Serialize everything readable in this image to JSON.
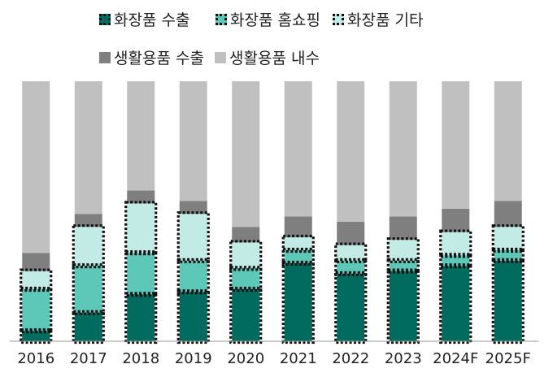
{
  "chart_data": {
    "type": "bar",
    "stacked": true,
    "categories": [
      "2016",
      "2017",
      "2018",
      "2019",
      "2020",
      "2021",
      "2022",
      "2023",
      "2024F",
      "2025F"
    ],
    "series": [
      {
        "name": "화장품 수출",
        "color": "#006b5e",
        "outline": "dotted",
        "values": [
          4,
          11,
          18,
          19,
          20,
          30,
          26,
          27,
          29,
          31
        ]
      },
      {
        "name": "화장품 홈쇼핑",
        "color": "#5ec8b8",
        "outline": "dotted",
        "values": [
          16,
          18,
          16,
          12,
          8,
          5,
          5,
          4,
          4,
          4
        ]
      },
      {
        "name": "화장품 기타",
        "color": "#c3ebe6",
        "outline": "dotted",
        "values": [
          7,
          15,
          19,
          18,
          10,
          5,
          6,
          8,
          9,
          9
        ]
      },
      {
        "name": "생활용품 수출",
        "color": "#7f7f7f",
        "outline": "none",
        "values": [
          7,
          5,
          5,
          5,
          6,
          8,
          9,
          9,
          9,
          10
        ]
      },
      {
        "name": "생활용품 내수",
        "color": "#c0c0c0",
        "outline": "none",
        "values": [
          66,
          51,
          42,
          46,
          56,
          52,
          54,
          52,
          49,
          46
        ]
      }
    ],
    "ylim": [
      0,
      100
    ],
    "grid": false,
    "legend": "top"
  }
}
